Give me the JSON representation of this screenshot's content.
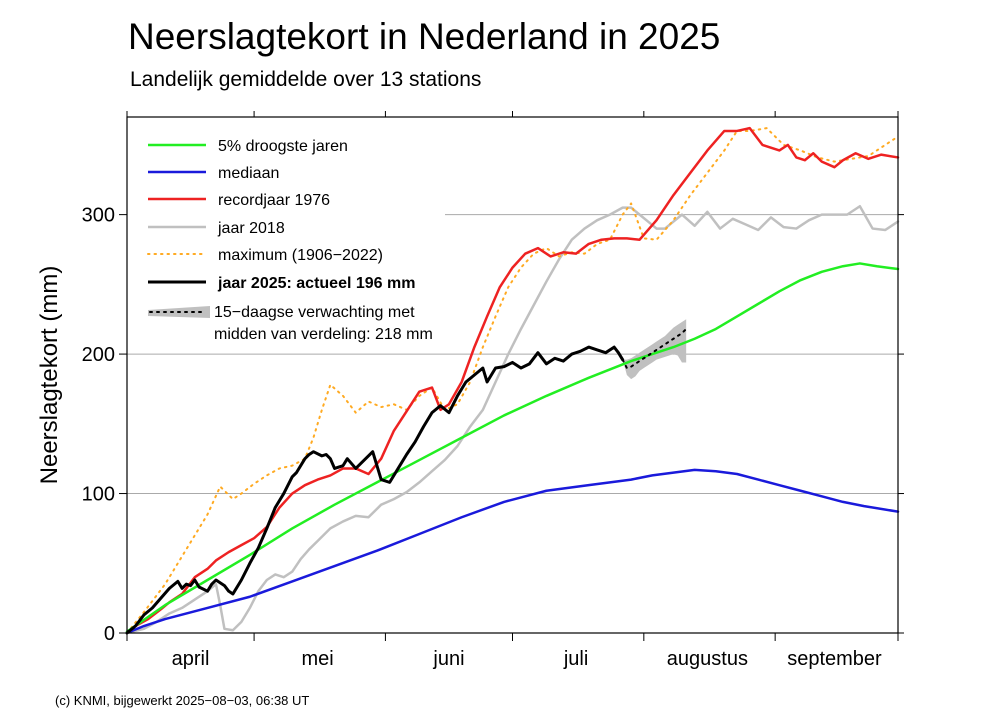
{
  "chart_data": {
    "type": "line",
    "title": "Neerslagtekort in Nederland in 2025",
    "subtitle": "Landelijk gemiddelde over 13 stations",
    "ylabel": "Neerslagtekort (mm)",
    "xlabel": "",
    "credit": "(c) KNMI, bijgewerkt 2025−08−03, 06:38 UT",
    "x_unit": "day of year 2025 (1 april = 91)",
    "xlim": [
      91,
      273
    ],
    "ylim": [
      0,
      370
    ],
    "yticks": [
      0,
      100,
      200,
      300
    ],
    "ytick_labels": [
      "0",
      "100",
      "200",
      "300"
    ],
    "month_ticks": [
      91,
      121,
      152,
      182,
      213,
      244,
      273
    ],
    "month_labels": [
      {
        "label": "april",
        "x": 106
      },
      {
        "label": "mei",
        "x": 136
      },
      {
        "label": "juni",
        "x": 167
      },
      {
        "label": "juli",
        "x": 197
      },
      {
        "label": "augustus",
        "x": 228
      },
      {
        "label": "september",
        "x": 258
      }
    ],
    "grid": {
      "horizontal": true,
      "vertical": false
    },
    "legend_position": "top-left",
    "series": [
      {
        "name": "5% droogste jaren",
        "color": "#22ee22",
        "dash": "solid",
        "width": 2.5,
        "x": [
          91,
          100,
          110,
          120,
          130,
          140,
          150,
          160,
          170,
          180,
          190,
          200,
          210,
          215,
          220,
          225,
          230,
          235,
          240,
          245,
          250,
          255,
          260,
          264,
          268,
          273
        ],
        "y": [
          1,
          20,
          38,
          56,
          75,
          92,
          108,
          124,
          140,
          156,
          170,
          183,
          195,
          200,
          205,
          211,
          218,
          227,
          236,
          245,
          253,
          259,
          263,
          265,
          263,
          261
        ]
      },
      {
        "name": "mediaan",
        "color": "#1a1adb",
        "dash": "solid",
        "width": 2.5,
        "x": [
          91,
          95,
          100,
          110,
          120,
          130,
          140,
          150,
          160,
          170,
          180,
          190,
          200,
          210,
          215,
          220,
          225,
          230,
          235,
          240,
          245,
          250,
          255,
          260,
          265,
          273
        ],
        "y": [
          0,
          5,
          10,
          18,
          26,
          37,
          48,
          59,
          71,
          83,
          94,
          102,
          106,
          110,
          113,
          115,
          117,
          116,
          114,
          110,
          106,
          102,
          98,
          94,
          91,
          87
        ]
      },
      {
        "name": "recordjaar 1976",
        "color": "#ee2222",
        "dash": "solid",
        "width": 2.5,
        "x": [
          91,
          93,
          96,
          99,
          101,
          104,
          107,
          110,
          112,
          115,
          118,
          121,
          124,
          127,
          130,
          133,
          136,
          139,
          142,
          145,
          148,
          151,
          154,
          157,
          160,
          163,
          165,
          167,
          170,
          173,
          176,
          179,
          182,
          185,
          188,
          191,
          194,
          197,
          200,
          203,
          206,
          209,
          212,
          216,
          220,
          224,
          228,
          232,
          235,
          238,
          241,
          243,
          245,
          247,
          249,
          251,
          253,
          255,
          258,
          260,
          263,
          266,
          269,
          273
        ],
        "y": [
          0,
          5,
          10,
          17,
          22,
          28,
          40,
          46,
          52,
          58,
          63,
          68,
          76,
          90,
          100,
          106,
          110,
          113,
          118,
          118,
          114,
          125,
          145,
          159,
          173,
          176,
          160,
          164,
          180,
          205,
          227,
          248,
          262,
          272,
          276,
          270,
          273,
          272,
          279,
          282,
          283,
          283,
          282,
          296,
          314,
          330,
          346,
          360,
          360,
          362,
          350,
          348,
          346,
          350,
          341,
          339,
          344,
          338,
          334,
          339,
          344,
          340,
          343,
          341
        ]
      },
      {
        "name": "jaar 2018",
        "color": "#c0c0c0",
        "dash": "solid",
        "width": 2.5,
        "x": [
          91,
          95,
          98,
          101,
          104,
          107,
          110,
          112,
          113,
          114,
          116,
          118,
          120,
          122,
          124,
          126,
          128,
          130,
          132,
          134,
          136,
          139,
          142,
          145,
          148,
          151,
          154,
          157,
          160,
          163,
          166,
          169,
          172,
          175,
          178,
          181,
          184,
          187,
          190,
          193,
          196,
          199,
          202,
          205,
          208,
          210,
          212,
          214,
          216,
          218,
          220,
          222,
          225,
          228,
          231,
          234,
          237,
          240,
          243,
          246,
          249,
          252,
          255,
          258,
          261,
          264,
          267,
          270,
          273
        ],
        "y": [
          0,
          3,
          8,
          14,
          18,
          24,
          30,
          35,
          20,
          3,
          2,
          8,
          18,
          30,
          38,
          42,
          40,
          44,
          53,
          60,
          66,
          75,
          80,
          84,
          83,
          92,
          96,
          101,
          108,
          116,
          124,
          134,
          148,
          160,
          180,
          200,
          218,
          235,
          252,
          268,
          282,
          290,
          296,
          300,
          305,
          305,
          300,
          295,
          290,
          290,
          295,
          300,
          292,
          302,
          290,
          297,
          293,
          289,
          298,
          291,
          290,
          296,
          300,
          300,
          300,
          306,
          290,
          289,
          295
        ]
      },
      {
        "name": "maximum (1906−2022)",
        "color": "#ffaa22",
        "dash": "dotted",
        "width": 2,
        "x": [
          91,
          95,
          100,
          104,
          107,
          110,
          113,
          116,
          118,
          121,
          124,
          127,
          130,
          133,
          135,
          137,
          139,
          142,
          145,
          148,
          151,
          154,
          157,
          160,
          163,
          166,
          169,
          172,
          175,
          178,
          181,
          184,
          187,
          190,
          193,
          196,
          199,
          202,
          205,
          208,
          210,
          213,
          216,
          220,
          224,
          228,
          232,
          235,
          238,
          242,
          246,
          250,
          254,
          258,
          262,
          266,
          270,
          273
        ],
        "y": [
          0,
          15,
          35,
          55,
          70,
          85,
          105,
          96,
          100,
          107,
          113,
          118,
          120,
          125,
          140,
          160,
          178,
          170,
          158,
          166,
          162,
          164,
          160,
          170,
          176,
          160,
          164,
          180,
          205,
          227,
          248,
          262,
          272,
          276,
          270,
          273,
          272,
          279,
          282,
          300,
          308,
          283,
          282,
          296,
          314,
          330,
          346,
          360,
          360,
          362,
          350,
          346,
          341,
          338,
          340,
          342,
          350,
          356
        ]
      },
      {
        "name": "jaar 2025: actueel 196 mm",
        "color": "#000000",
        "dash": "solid",
        "width": 3,
        "x": [
          91,
          93,
          95,
          97,
          99,
          101,
          103,
          104,
          105,
          106,
          107,
          108,
          110,
          111,
          112,
          114,
          115,
          116,
          118,
          120,
          122,
          124,
          126,
          128,
          130,
          131,
          133,
          134,
          135,
          137,
          138,
          139,
          140,
          142,
          143,
          145,
          147,
          149,
          151,
          153,
          155,
          157,
          159,
          161,
          163,
          165,
          167,
          169,
          171,
          173,
          175,
          176,
          178,
          180,
          182,
          184,
          186,
          188,
          190,
          192,
          194,
          196,
          198,
          200,
          202,
          204,
          206,
          207,
          208
        ],
        "y": [
          0,
          5,
          13,
          18,
          25,
          32,
          37,
          32,
          35,
          34,
          38,
          33,
          30,
          35,
          38,
          34,
          30,
          28,
          38,
          50,
          61,
          75,
          90,
          100,
          112,
          115,
          125,
          128,
          130,
          127,
          128,
          125,
          118,
          120,
          125,
          118,
          124,
          130,
          110,
          108,
          118,
          128,
          137,
          148,
          158,
          163,
          158,
          170,
          180,
          185,
          190,
          180,
          190,
          191,
          194,
          190,
          193,
          201,
          193,
          197,
          195,
          200,
          202,
          205,
          203,
          201,
          205,
          201,
          196
        ]
      }
    ],
    "forecast": {
      "name": "15−daagse verwachting met",
      "name_line2": "midden van verdeling: 218 mm",
      "band_color": "#c0c0c0",
      "median_color": "#000000",
      "x": [
        208,
        209,
        210,
        211,
        212,
        213,
        214,
        215,
        216,
        217,
        218,
        219,
        220,
        221,
        222,
        223
      ],
      "lower": [
        196,
        185,
        182,
        184,
        188,
        190,
        192,
        194,
        196,
        197,
        198,
        199,
        200,
        199,
        194,
        194
      ],
      "upper": [
        196,
        196,
        197,
        199,
        201,
        203,
        205,
        207,
        209,
        211,
        213,
        216,
        219,
        221,
        223,
        225
      ],
      "median": [
        196,
        190,
        191,
        193,
        195,
        197,
        199,
        201,
        203,
        205,
        207,
        209,
        211,
        213,
        215,
        218
      ]
    }
  }
}
